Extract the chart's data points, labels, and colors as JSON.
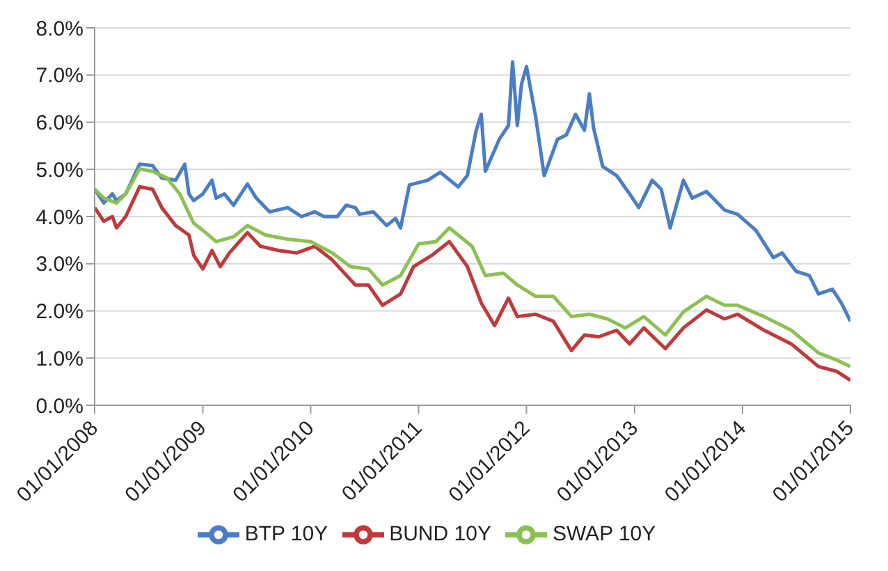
{
  "chart_data": {
    "type": "line",
    "series": [
      {
        "name": "BTP 10Y",
        "color": "#4a7ec4",
        "x": [
          "2008-01-01",
          "2008-02-01",
          "2008-03-01",
          "2008-03-15",
          "2008-04-15",
          "2008-06-01",
          "2008-07-15",
          "2008-08-15",
          "2008-10-01",
          "2008-11-01",
          "2008-11-15",
          "2008-12-01",
          "2009-01-01",
          "2009-02-01",
          "2009-02-15",
          "2009-03-15",
          "2009-04-15",
          "2009-06-01",
          "2009-07-01",
          "2009-08-15",
          "2009-10-15",
          "2009-12-01",
          "2010-01-15",
          "2010-02-15",
          "2010-04-01",
          "2010-05-01",
          "2010-06-01",
          "2010-06-15",
          "2010-08-01",
          "2010-09-15",
          "2010-10-15",
          "2010-11-01",
          "2010-12-01",
          "2011-02-01",
          "2011-03-15",
          "2011-05-15",
          "2011-06-15",
          "2011-07-15",
          "2011-08-01",
          "2011-08-15",
          "2011-10-01",
          "2011-11-01",
          "2011-11-15",
          "2011-12-01",
          "2011-12-15",
          "2012-01-01",
          "2012-02-01",
          "2012-03-01",
          "2012-04-15",
          "2012-05-15",
          "2012-06-15",
          "2012-07-15",
          "2012-08-01",
          "2012-08-15",
          "2012-09-15",
          "2012-11-01",
          "2012-12-15",
          "2013-01-15",
          "2013-03-01",
          "2013-04-01",
          "2013-05-01",
          "2013-06-15",
          "2013-07-15",
          "2013-09-01",
          "2013-11-01",
          "2013-12-15",
          "2014-02-15",
          "2014-04-15",
          "2014-05-15",
          "2014-07-01",
          "2014-08-15",
          "2014-09-15",
          "2014-11-01",
          "2014-12-01",
          "2015-01-01"
        ],
        "values": [
          4.58,
          4.29,
          4.48,
          4.34,
          4.48,
          5.11,
          5.08,
          4.82,
          4.77,
          5.11,
          4.48,
          4.34,
          4.48,
          4.77,
          4.39,
          4.48,
          4.24,
          4.69,
          4.39,
          4.1,
          4.19,
          4.0,
          4.1,
          4.0,
          4.0,
          4.24,
          4.19,
          4.05,
          4.1,
          3.81,
          3.96,
          3.76,
          4.67,
          4.77,
          4.94,
          4.63,
          4.87,
          5.83,
          6.17,
          4.96,
          5.64,
          5.93,
          7.28,
          5.93,
          6.8,
          7.18,
          6.12,
          4.87,
          5.64,
          5.73,
          6.17,
          5.83,
          6.6,
          5.88,
          5.06,
          4.87,
          4.48,
          4.19,
          4.77,
          4.58,
          3.76,
          4.77,
          4.39,
          4.53,
          4.14,
          4.05,
          3.71,
          3.13,
          3.23,
          2.84,
          2.75,
          2.36,
          2.46,
          2.17,
          1.78
        ]
      },
      {
        "name": "BUND 10Y",
        "color": "#c0393b",
        "x": [
          "2008-01-01",
          "2008-02-01",
          "2008-03-01",
          "2008-03-15",
          "2008-04-15",
          "2008-06-01",
          "2008-07-15",
          "2008-08-15",
          "2008-10-01",
          "2008-11-15",
          "2008-12-01",
          "2009-01-01",
          "2009-02-01",
          "2009-03-01",
          "2009-04-01",
          "2009-06-01",
          "2009-07-15",
          "2009-09-15",
          "2009-11-15",
          "2010-01-15",
          "2010-03-15",
          "2010-06-01",
          "2010-07-15",
          "2010-09-01",
          "2010-11-01",
          "2010-12-15",
          "2011-02-15",
          "2011-04-15",
          "2011-06-15",
          "2011-08-01",
          "2011-09-15",
          "2011-11-01",
          "2011-12-01",
          "2012-02-01",
          "2012-04-01",
          "2012-06-01",
          "2012-07-15",
          "2012-09-01",
          "2012-11-01",
          "2012-12-15",
          "2013-02-01",
          "2013-04-15",
          "2013-06-15",
          "2013-09-01",
          "2013-11-01",
          "2013-12-15",
          "2014-03-15",
          "2014-06-15",
          "2014-09-15",
          "2014-11-15",
          "2015-01-01"
        ],
        "values": [
          4.19,
          3.9,
          4.0,
          3.76,
          4.0,
          4.63,
          4.58,
          4.19,
          3.81,
          3.61,
          3.18,
          2.89,
          3.28,
          2.94,
          3.23,
          3.66,
          3.37,
          3.28,
          3.23,
          3.37,
          3.08,
          2.55,
          2.55,
          2.12,
          2.36,
          2.94,
          3.18,
          3.47,
          2.94,
          2.17,
          1.69,
          2.27,
          1.88,
          1.93,
          1.78,
          1.16,
          1.49,
          1.45,
          1.59,
          1.3,
          1.64,
          1.2,
          1.64,
          2.02,
          1.83,
          1.93,
          1.59,
          1.3,
          0.82,
          0.72,
          0.53
        ]
      },
      {
        "name": "SWAP 10Y",
        "color": "#8cc152",
        "x": [
          "2008-01-01",
          "2008-02-01",
          "2008-03-15",
          "2008-04-15",
          "2008-06-01",
          "2008-07-15",
          "2008-09-01",
          "2008-10-15",
          "2008-12-01",
          "2009-01-01",
          "2009-02-15",
          "2009-04-15",
          "2009-06-01",
          "2009-08-01",
          "2009-10-15",
          "2010-01-01",
          "2010-03-15",
          "2010-05-15",
          "2010-07-15",
          "2010-09-01",
          "2010-11-01",
          "2011-01-01",
          "2011-03-01",
          "2011-04-15",
          "2011-07-01",
          "2011-08-15",
          "2011-10-15",
          "2011-12-01",
          "2012-02-01",
          "2012-04-01",
          "2012-06-01",
          "2012-08-01",
          "2012-10-01",
          "2012-12-01",
          "2013-02-01",
          "2013-04-15",
          "2013-06-15",
          "2013-09-01",
          "2013-11-01",
          "2013-12-15",
          "2014-03-15",
          "2014-06-15",
          "2014-09-15",
          "2014-11-15",
          "2015-01-01"
        ],
        "values": [
          4.58,
          4.39,
          4.29,
          4.48,
          5.01,
          4.96,
          4.82,
          4.48,
          3.86,
          3.71,
          3.47,
          3.57,
          3.81,
          3.61,
          3.52,
          3.47,
          3.23,
          2.94,
          2.89,
          2.55,
          2.75,
          3.42,
          3.47,
          3.76,
          3.37,
          2.75,
          2.8,
          2.55,
          2.31,
          2.31,
          1.88,
          1.93,
          1.83,
          1.64,
          1.88,
          1.49,
          1.98,
          2.31,
          2.12,
          2.12,
          1.88,
          1.59,
          1.11,
          0.96,
          0.82
        ]
      }
    ],
    "xlim": [
      "2008-01-01",
      "2015-01-01"
    ],
    "xticks": [
      {
        "value": "2008-01-01",
        "label": "01/01/2008"
      },
      {
        "value": "2009-01-01",
        "label": "01/01/2009"
      },
      {
        "value": "2010-01-01",
        "label": "01/01/2010"
      },
      {
        "value": "2011-01-01",
        "label": "01/01/2011"
      },
      {
        "value": "2012-01-01",
        "label": "01/01/2012"
      },
      {
        "value": "2013-01-01",
        "label": "01/01/2013"
      },
      {
        "value": "2014-01-01",
        "label": "01/01/2014"
      },
      {
        "value": "2015-01-01",
        "label": "01/01/2015"
      }
    ],
    "ylim": [
      0,
      8
    ],
    "yticks": [
      {
        "value": 0,
        "label": "0.0%"
      },
      {
        "value": 1,
        "label": "1.0%"
      },
      {
        "value": 2,
        "label": "2.0%"
      },
      {
        "value": 3,
        "label": "3.0%"
      },
      {
        "value": 4,
        "label": "4.0%"
      },
      {
        "value": 5,
        "label": "5.0%"
      },
      {
        "value": 6,
        "label": "6.0%"
      },
      {
        "value": 7,
        "label": "7.0%"
      },
      {
        "value": 8,
        "label": "8.0%"
      }
    ],
    "grid": "y",
    "legend": "bottom",
    "marker": "none",
    "line_style": "solid"
  }
}
